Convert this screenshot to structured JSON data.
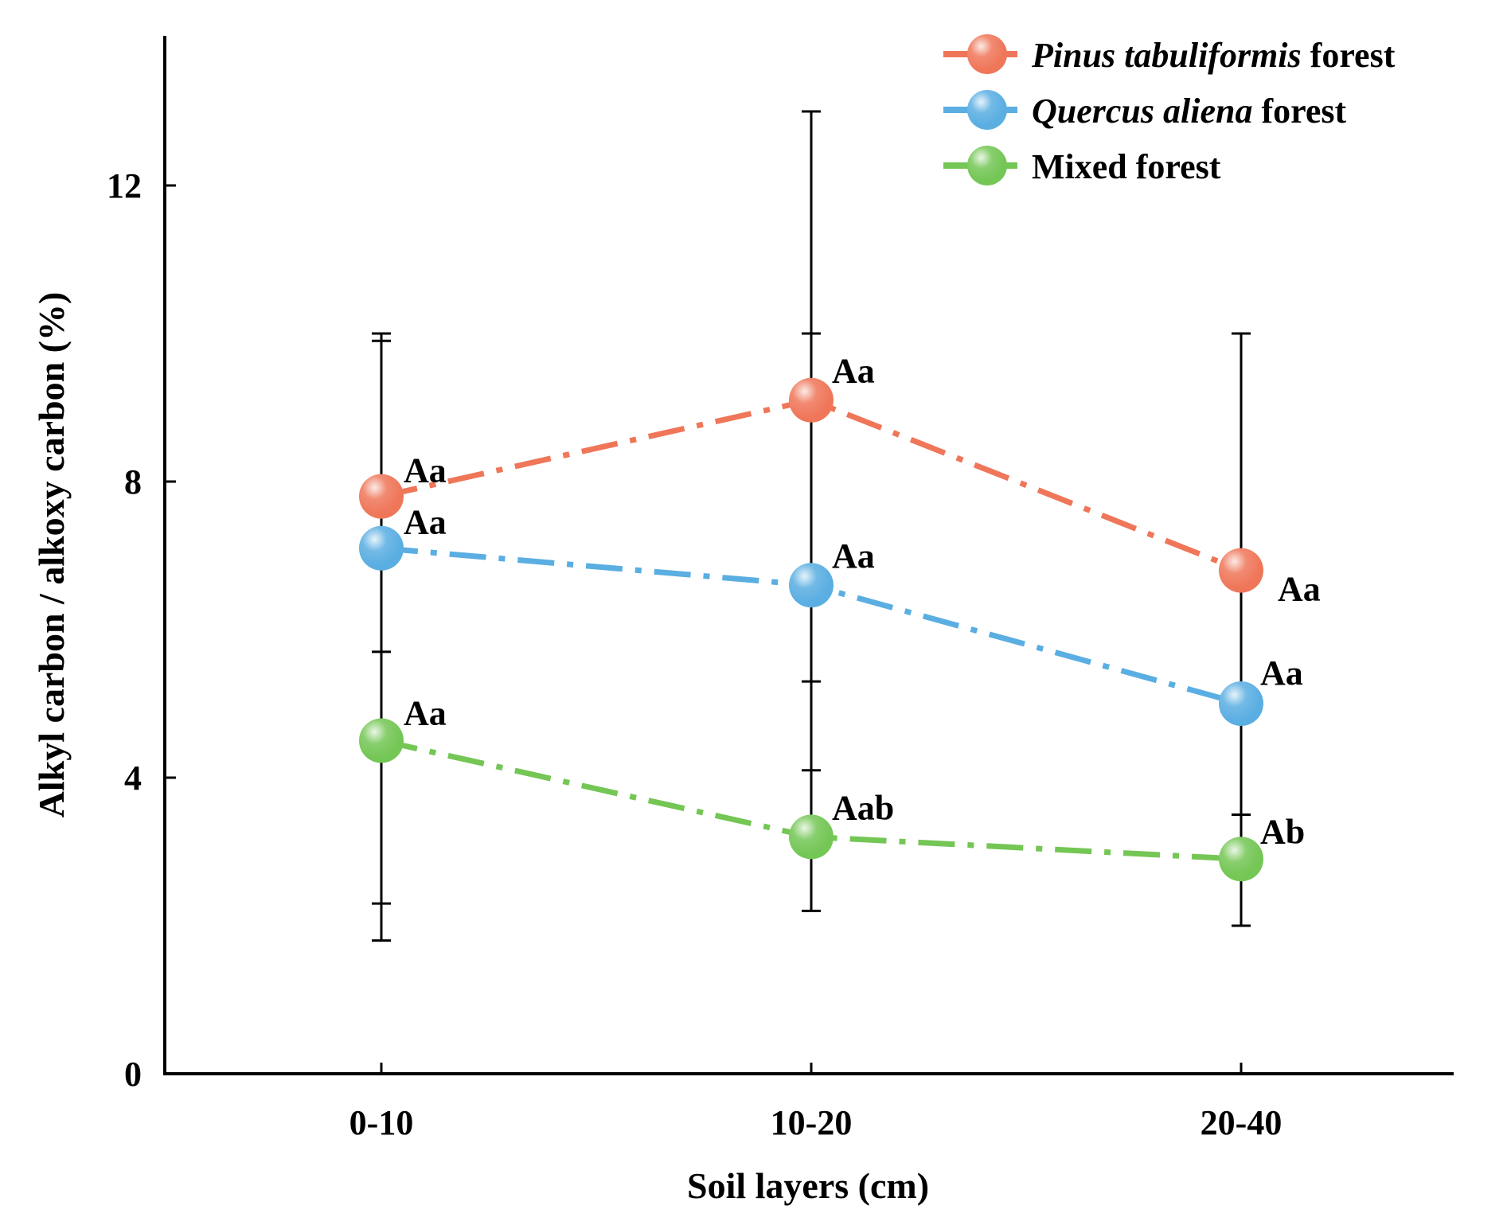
{
  "chart_data": {
    "type": "line",
    "title": "",
    "xlabel": "Soil layers (cm)",
    "ylabel": "Alkyl carbon / alkoxy carbon (%)",
    "categories": [
      "0-10",
      "10-20",
      "20-40"
    ],
    "ylim": [
      0,
      14
    ],
    "yticks": [
      "0",
      "4",
      "8",
      "12"
    ],
    "grid": false,
    "legend_position": "top-right",
    "series": [
      {
        "name_italic": "Pinus tabuliformis",
        "name_suffix": " forest",
        "color": "#ef7659",
        "values": [
          7.8,
          9.1,
          6.8
        ],
        "err_low": [
          1.8,
          3.2,
          2.0
        ],
        "err_high": [
          10.0,
          13.0,
          10.0
        ],
        "labels": [
          "Aa",
          "Aa",
          "Aa"
        ]
      },
      {
        "name_italic": "Quercus aliena",
        "name_suffix": " forest",
        "color": "#5aaee2",
        "values": [
          7.1,
          6.6,
          5.0
        ],
        "err_low": [
          4.3,
          4.1,
          2.0
        ],
        "err_high": [
          9.9,
          10.0,
          10.0
        ],
        "labels": [
          "Aa",
          "Aa",
          "Aa"
        ]
      },
      {
        "name_italic": "",
        "name_suffix": "Mixed forest",
        "color": "#74c655",
        "values": [
          4.5,
          3.2,
          2.9
        ],
        "err_low": [
          2.3,
          2.2,
          2.7
        ],
        "err_high": [
          5.7,
          5.3,
          3.5
        ],
        "labels": [
          "Aa",
          "Aab",
          "Ab"
        ]
      }
    ]
  }
}
